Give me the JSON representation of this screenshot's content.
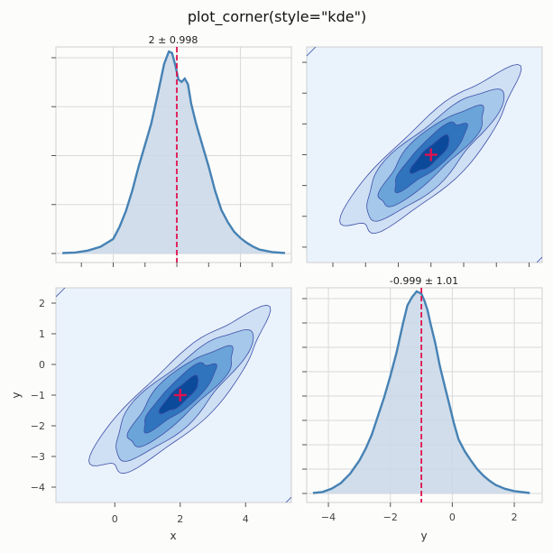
{
  "figure": {
    "title": "plot_corner(style=\"kde\")"
  },
  "colors": {
    "fill": "#c9d7e6",
    "line": "#4682b4",
    "marker": "#e0114f",
    "panel2d": "#eaf2fc",
    "grid": "#d9d9d9",
    "contours": [
      "#cfe0f4",
      "#a6c8ea",
      "#6aa4d8",
      "#2f74bd",
      "#0b4a9a"
    ]
  },
  "chart_data": [
    {
      "id": "kde-x",
      "type": "area",
      "title": "2 ± 0.998",
      "xlabel": "",
      "ylabel": "",
      "xlim": [
        -1.8,
        5.6
      ],
      "ylim": [
        0,
        0.42
      ],
      "xticks": [
        0,
        2,
        4
      ],
      "grid": true,
      "marker_value": 2,
      "x": [
        -1.6,
        -1.2,
        -0.8,
        -0.4,
        0.0,
        0.2,
        0.4,
        0.6,
        0.8,
        1.0,
        1.2,
        1.4,
        1.6,
        1.75,
        1.85,
        1.95,
        2.05,
        2.15,
        2.25,
        2.35,
        2.45,
        2.6,
        2.8,
        3.0,
        3.2,
        3.4,
        3.6,
        3.8,
        4.0,
        4.2,
        4.4,
        4.6,
        5.0,
        5.4
      ],
      "y": [
        0.001,
        0.002,
        0.006,
        0.014,
        0.03,
        0.055,
        0.088,
        0.13,
        0.18,
        0.225,
        0.27,
        0.33,
        0.392,
        0.418,
        0.415,
        0.39,
        0.36,
        0.355,
        0.362,
        0.35,
        0.31,
        0.27,
        0.225,
        0.18,
        0.13,
        0.09,
        0.065,
        0.045,
        0.032,
        0.022,
        0.014,
        0.008,
        0.003,
        0.001
      ]
    },
    {
      "id": "kde-y",
      "type": "area",
      "title": "-0.999 ± 1.01",
      "xlabel": "y",
      "ylabel": "",
      "xlim": [
        -4.7,
        2.9
      ],
      "ylim": [
        0,
        0.43
      ],
      "xticks": [
        -4,
        -2,
        0,
        2
      ],
      "grid": true,
      "marker_value": -0.999,
      "x": [
        -4.5,
        -4.2,
        -3.9,
        -3.6,
        -3.3,
        -3.0,
        -2.8,
        -2.6,
        -2.4,
        -2.2,
        -2.0,
        -1.8,
        -1.6,
        -1.45,
        -1.3,
        -1.15,
        -1.0,
        -0.9,
        -0.8,
        -0.7,
        -0.55,
        -0.4,
        -0.25,
        -0.1,
        0.05,
        0.2,
        0.4,
        0.6,
        0.8,
        1.0,
        1.2,
        1.4,
        1.7,
        2.0,
        2.5
      ],
      "y": [
        0.001,
        0.003,
        0.01,
        0.022,
        0.042,
        0.07,
        0.095,
        0.125,
        0.165,
        0.205,
        0.25,
        0.3,
        0.36,
        0.4,
        0.418,
        0.43,
        0.425,
        0.41,
        0.39,
        0.36,
        0.32,
        0.27,
        0.23,
        0.19,
        0.15,
        0.115,
        0.09,
        0.07,
        0.052,
        0.038,
        0.027,
        0.018,
        0.01,
        0.005,
        0.001
      ]
    },
    {
      "id": "kde-2d",
      "type": "heatmap",
      "xlabel": "x",
      "ylabel": "y",
      "xlim": [
        -1.8,
        5.4
      ],
      "ylim": [
        -4.5,
        2.5
      ],
      "xticks": [
        0,
        2,
        4
      ],
      "yticks": [
        -4,
        -3,
        -2,
        -1,
        0,
        1,
        2
      ],
      "mean": [
        2,
        -1
      ],
      "contour_sigmas": [
        2.6,
        2.1,
        1.6,
        1.1,
        0.6
      ],
      "correlation": 0.85
    }
  ]
}
